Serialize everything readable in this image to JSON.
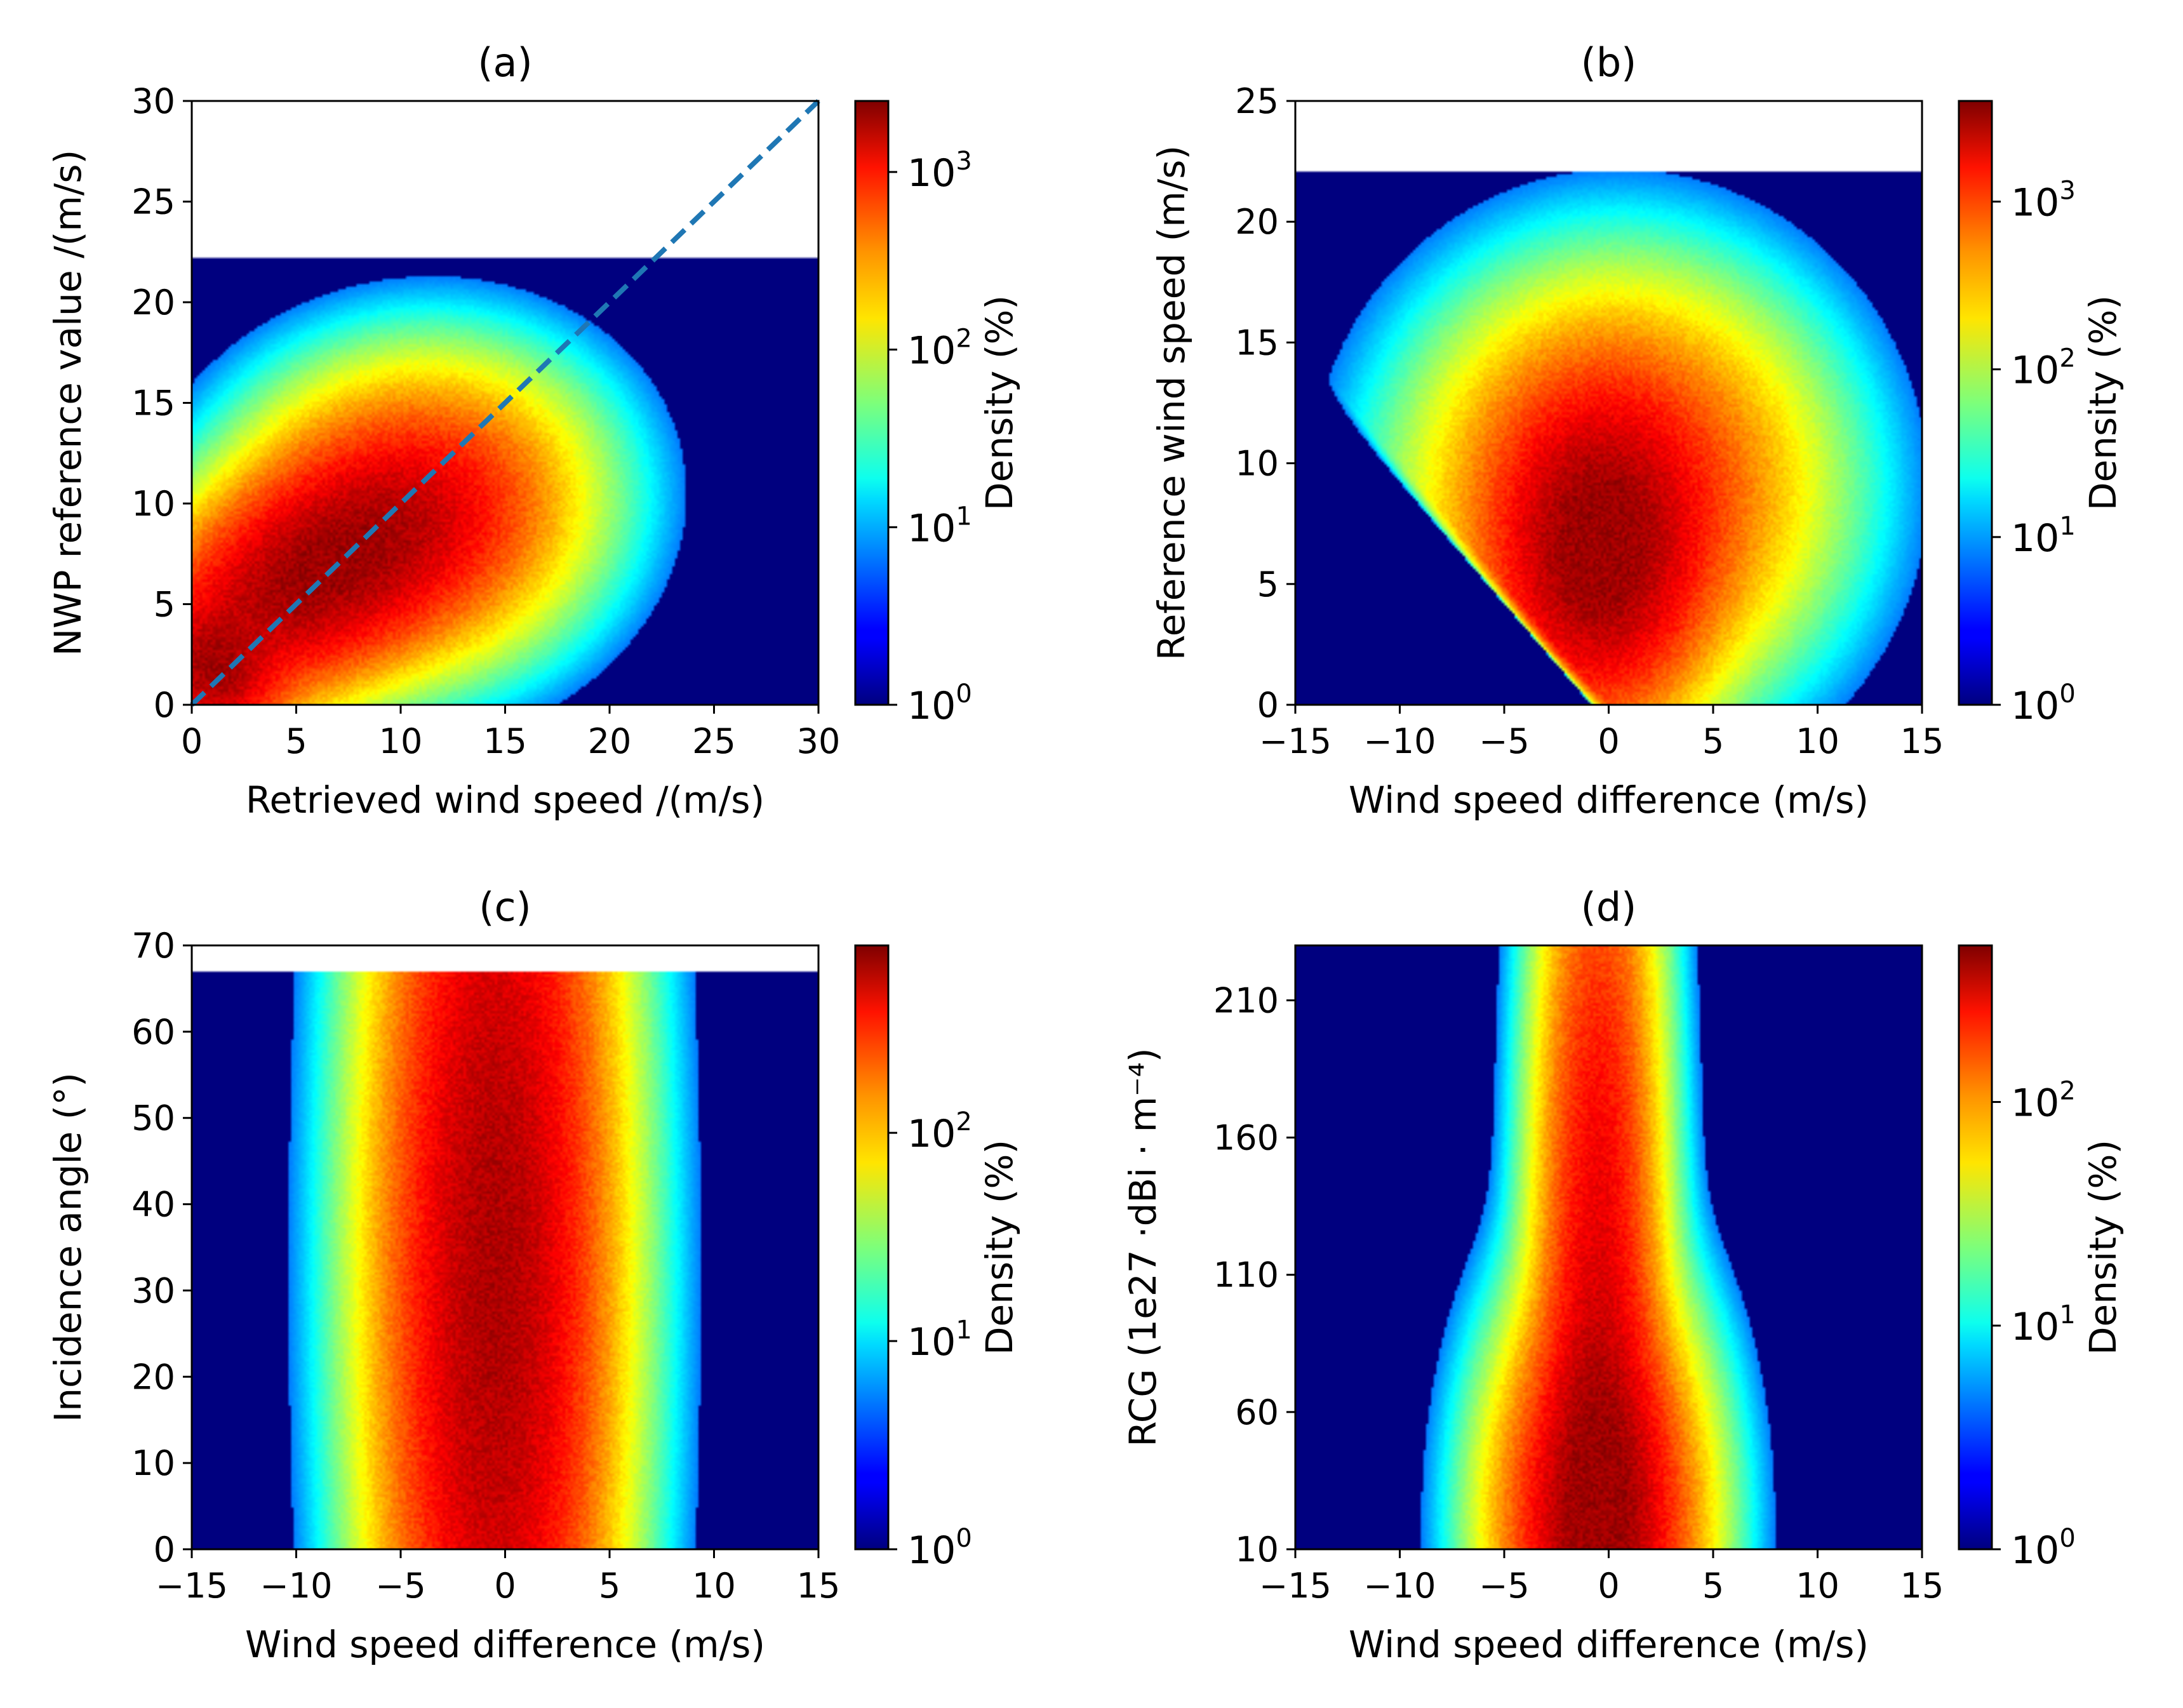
{
  "colors": {
    "background": "#00007f",
    "reference_line": "#1f77b4"
  },
  "colormap": "jet",
  "chart_data": [
    {
      "id": "a",
      "type": "heatmap",
      "title": "(a)",
      "xlabel": "Retrieved wind speed /(m/s)",
      "ylabel": "NWP reference value /(m/s)",
      "xlim": [
        0,
        30
      ],
      "ylim": [
        0,
        30
      ],
      "xticks": [
        "0",
        "5",
        "10",
        "15",
        "20",
        "25",
        "30"
      ],
      "xtick_values": [
        0,
        5,
        10,
        15,
        20,
        25,
        30
      ],
      "yticks": [
        "0",
        "5",
        "10",
        "15",
        "20",
        "25",
        "30"
      ],
      "ytick_values": [
        0,
        5,
        10,
        15,
        20,
        25,
        30
      ],
      "data_ymax": 22.2,
      "reference_line": {
        "x": [
          0,
          30
        ],
        "y": [
          0,
          30
        ],
        "style": "dashed"
      },
      "colorbar": {
        "label": "Density (%)",
        "scale": "log",
        "tick_exponents": [
          0,
          1,
          2,
          3
        ],
        "max_exponent": 3.4
      },
      "density_blobs": [
        {
          "cx": 5.5,
          "cy": 6.2,
          "sx": 4.5,
          "sy": 2.6,
          "rot": 0.55,
          "amp": 1.0
        },
        {
          "cx": 10.5,
          "cy": 9.5,
          "sx": 4.0,
          "sy": 3.5,
          "rot": 0.3,
          "amp": 0.5
        },
        {
          "cx": 1.0,
          "cy": 1.5,
          "sx": 1.5,
          "sy": 1.8,
          "rot": 0.6,
          "amp": 0.8
        }
      ]
    },
    {
      "id": "b",
      "type": "heatmap",
      "title": "(b)",
      "xlabel": "Wind speed difference (m/s)",
      "ylabel": "Reference wind speed (m/s)",
      "xlim": [
        -15,
        15
      ],
      "ylim": [
        0,
        25
      ],
      "xticks": [
        "−15",
        "−10",
        "−5",
        "0",
        "5",
        "10",
        "15"
      ],
      "xtick_values": [
        -15,
        -10,
        -5,
        0,
        5,
        10,
        15
      ],
      "yticks": [
        "0",
        "5",
        "10",
        "15",
        "20",
        "25"
      ],
      "ytick_values": [
        0,
        5,
        10,
        15,
        20,
        25
      ],
      "data_ymax": 22.1,
      "colorbar": {
        "label": "Density (%)",
        "scale": "log",
        "tick_exponents": [
          0,
          1,
          2,
          3
        ],
        "max_exponent": 3.6
      },
      "density_blobs": [
        {
          "cx": -0.5,
          "cy": 6.0,
          "sx": 2.6,
          "sy": 3.5,
          "rot": 0,
          "amp": 1.0
        },
        {
          "cx": 0.5,
          "cy": 9.0,
          "sx": 4.5,
          "sy": 4.0,
          "rot": 0,
          "amp": 0.45
        }
      ]
    },
    {
      "id": "c",
      "type": "heatmap",
      "title": "(c)",
      "xlabel": "Wind speed difference (m/s)",
      "ylabel": "Incidence angle (°)",
      "xlim": [
        -15,
        15
      ],
      "ylim": [
        0,
        70
      ],
      "xticks": [
        "−15",
        "−10",
        "−5",
        "0",
        "5",
        "10",
        "15"
      ],
      "xtick_values": [
        -15,
        -10,
        -5,
        0,
        5,
        10,
        15
      ],
      "yticks": [
        "0",
        "10",
        "20",
        "30",
        "40",
        "50",
        "60",
        "70"
      ],
      "ytick_values": [
        0,
        10,
        20,
        30,
        40,
        50,
        60,
        70
      ],
      "data_ymax": 67,
      "colorbar": {
        "label": "Density (%)",
        "scale": "log",
        "tick_exponents": [
          0,
          1,
          2
        ],
        "max_exponent": 2.9
      },
      "density_blobs": [
        {
          "cx": -0.5,
          "cy": 32,
          "sx": 2.8,
          "sy": 40,
          "rot": 0,
          "amp": 1.0
        }
      ]
    },
    {
      "id": "d",
      "type": "heatmap",
      "title": "(d)",
      "xlabel": "Wind speed difference (m/s)",
      "ylabel": "RCG (1e27 ·dBi · m⁻⁴)",
      "xlim": [
        -15,
        15
      ],
      "ylim": [
        10,
        230
      ],
      "xticks": [
        "−15",
        "−10",
        "−5",
        "0",
        "5",
        "10",
        "15"
      ],
      "xtick_values": [
        -15,
        -10,
        -5,
        0,
        5,
        10,
        15
      ],
      "yticks": [
        "10",
        "60",
        "110",
        "160",
        "210"
      ],
      "ytick_values": [
        10,
        60,
        110,
        160,
        210
      ],
      "data_ymax": 230,
      "colorbar": {
        "label": "Density (%)",
        "scale": "log",
        "tick_exponents": [
          0,
          1,
          2
        ],
        "max_exponent": 2.7
      },
      "density_blobs": [
        {
          "cx": -0.5,
          "cy": 20,
          "sx": 2.4,
          "sy": 40,
          "rot": 0,
          "amp": 1.0
        },
        {
          "cx": -0.5,
          "cy": 110,
          "sx": 1.5,
          "sy": 100,
          "rot": 0,
          "amp": 0.6
        }
      ]
    }
  ]
}
